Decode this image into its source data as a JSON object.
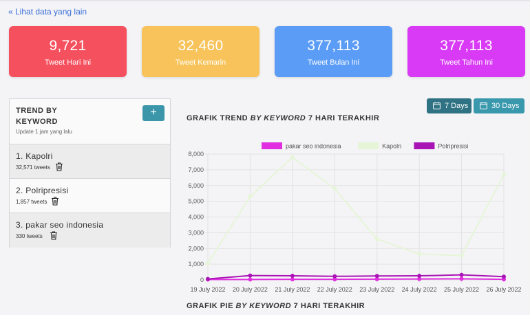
{
  "nav": {
    "back_link": "« Lihat data yang lain"
  },
  "stats": [
    {
      "value": "9,721",
      "label": "Tweet Hari Ini",
      "color": "#f5505e"
    },
    {
      "value": "32,460",
      "label": "Tweet Kemarin",
      "color": "#f7c35a"
    },
    {
      "value": "377,113",
      "label": "Tweet Bulan Ini",
      "color": "#5b9cf6"
    },
    {
      "value": "377,113",
      "label": "Tweet Tahun Ini",
      "color": "#d83af5"
    }
  ],
  "trend_panel": {
    "title": "TREND BY KEYWORD",
    "update_text": "Update 1 jam yang lalu",
    "add_label": "+",
    "keywords": [
      {
        "name": "1. Kapolri",
        "count": "32,571 tweets"
      },
      {
        "name": "2. Polripresisi",
        "count": "1,857 tweets"
      },
      {
        "name": "3. pakar seo indonesia",
        "count": "330 tweets"
      }
    ]
  },
  "range_buttons": {
    "seven_days": "7 Days",
    "thirty_days": "30 Days"
  },
  "chart_heading": {
    "prefix": "GRAFIK TREND ",
    "italic": "BY KEYWORD",
    "suffix": " 7 HARI TERAKHIR"
  },
  "pie_heading": {
    "prefix": "GRAFIK PIE ",
    "italic": "BY KEYWORD",
    "suffix": " 7 HARI TERAKHIR"
  },
  "chart_data": {
    "type": "line",
    "x": [
      "19 July 2022",
      "20 July 2022",
      "21 July 2022",
      "22 July 2022",
      "23 July 2022",
      "24 July 2022",
      "25 July 2022",
      "26 July 2022"
    ],
    "ylim": [
      0,
      8000
    ],
    "yticks": [
      "0",
      "1,000",
      "2,000",
      "3,000",
      "4,000",
      "5,000",
      "6,000",
      "7,000",
      "8,000"
    ],
    "legend_position": "top",
    "grid": true,
    "series": [
      {
        "name": "pakar seo indonesia",
        "color": "#e02ee0",
        "values": [
          30,
          30,
          40,
          40,
          50,
          60,
          70,
          40
        ]
      },
      {
        "name": "Kapolri",
        "color": "#e6f5d8",
        "values": [
          1050,
          5300,
          7800,
          5800,
          2600,
          1650,
          1550,
          6700
        ]
      },
      {
        "name": "Polripresisi",
        "color": "#a915b5",
        "values": [
          60,
          280,
          260,
          230,
          250,
          260,
          320,
          210
        ]
      }
    ]
  }
}
